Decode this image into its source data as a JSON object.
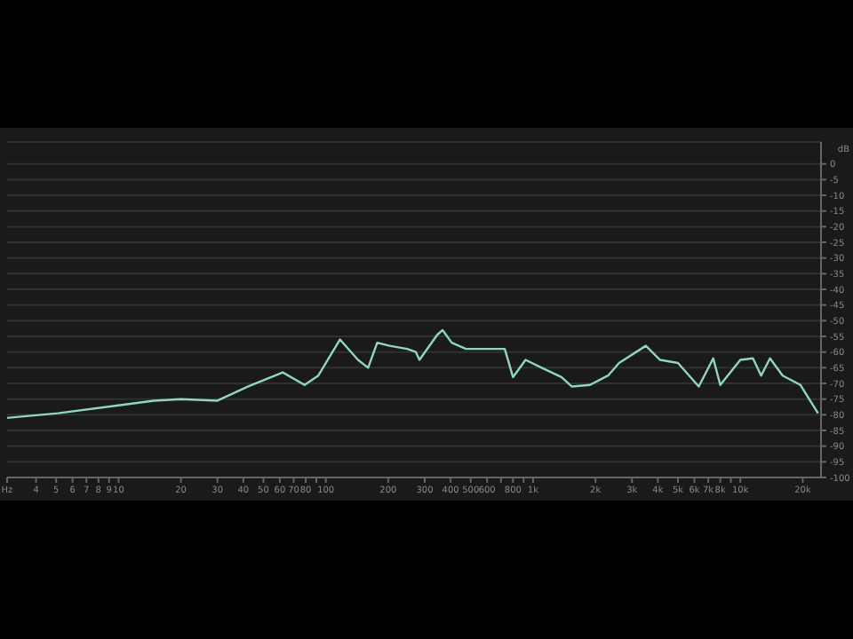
{
  "chart_data": {
    "type": "line",
    "ylabel": "dB",
    "log": "x",
    "grid": "y",
    "legend": false,
    "marker": "none",
    "line_style": "solid",
    "x": [
      2.9,
      5.1,
      10,
      14.8,
      20,
      30,
      42,
      62,
      79,
      92,
      117,
      143,
      160,
      177,
      203,
      247,
      272,
      283,
      345,
      366,
      405,
      474,
      600,
      730,
      800,
      920,
      1100,
      1370,
      1540,
      1880,
      2300,
      2600,
      3500,
      4100,
      5000,
      6300,
      7400,
      8000,
      10000,
      11500,
      12600,
      13900,
      16000,
      19500,
      23700
    ],
    "series": [
      {
        "color": "#8fd8b8",
        "values": [
          -81,
          -79.5,
          -77,
          -75.5,
          -75,
          -75.5,
          -71,
          -66.5,
          -70.5,
          -67.5,
          -56,
          -62.5,
          -65,
          -57,
          -58,
          -59,
          -60,
          -62.5,
          -54.5,
          -53,
          -57,
          -59,
          -59,
          -59,
          -68,
          -62.5,
          -65,
          -68,
          -71,
          -70.5,
          -67.5,
          -63.5,
          -58,
          -62.5,
          -63.5,
          -71,
          -62,
          -70.5,
          -62.5,
          -62,
          -67.5,
          -62,
          -67.5,
          -70.5,
          -79.5
        ]
      }
    ],
    "xlim": [
      2.9,
      24500
    ],
    "xticks": [
      {
        "value": 2.9,
        "label": "Hz"
      },
      4,
      5,
      6,
      7,
      8,
      9,
      10,
      20,
      30,
      40,
      50,
      60,
      70,
      80,
      {
        "value": 90,
        "label": null
      },
      100,
      200,
      300,
      400,
      500,
      600,
      {
        "value": 700,
        "label": null
      },
      800,
      {
        "value": 900,
        "label": null
      },
      {
        "value": 1000,
        "label": "1k"
      },
      {
        "value": 2000,
        "label": "2k"
      },
      {
        "value": 3000,
        "label": "3k"
      },
      {
        "value": 4000,
        "label": "4k"
      },
      {
        "value": 5000,
        "label": "5k"
      },
      {
        "value": 6000,
        "label": "6k"
      },
      {
        "value": 7000,
        "label": "7k"
      },
      {
        "value": 8000,
        "label": "8k"
      },
      {
        "value": 9000,
        "label": null
      },
      {
        "value": 10000,
        "label": "10k"
      },
      {
        "value": 20000,
        "label": "20k"
      }
    ],
    "ylim": [
      -100,
      7
    ],
    "yticks": [
      0,
      -5,
      -10,
      -15,
      -20,
      -25,
      -30,
      -35,
      -40,
      -45,
      -50,
      -55,
      -60,
      -65,
      -70,
      -75,
      -80,
      -85,
      -90,
      -95,
      -100
    ]
  }
}
